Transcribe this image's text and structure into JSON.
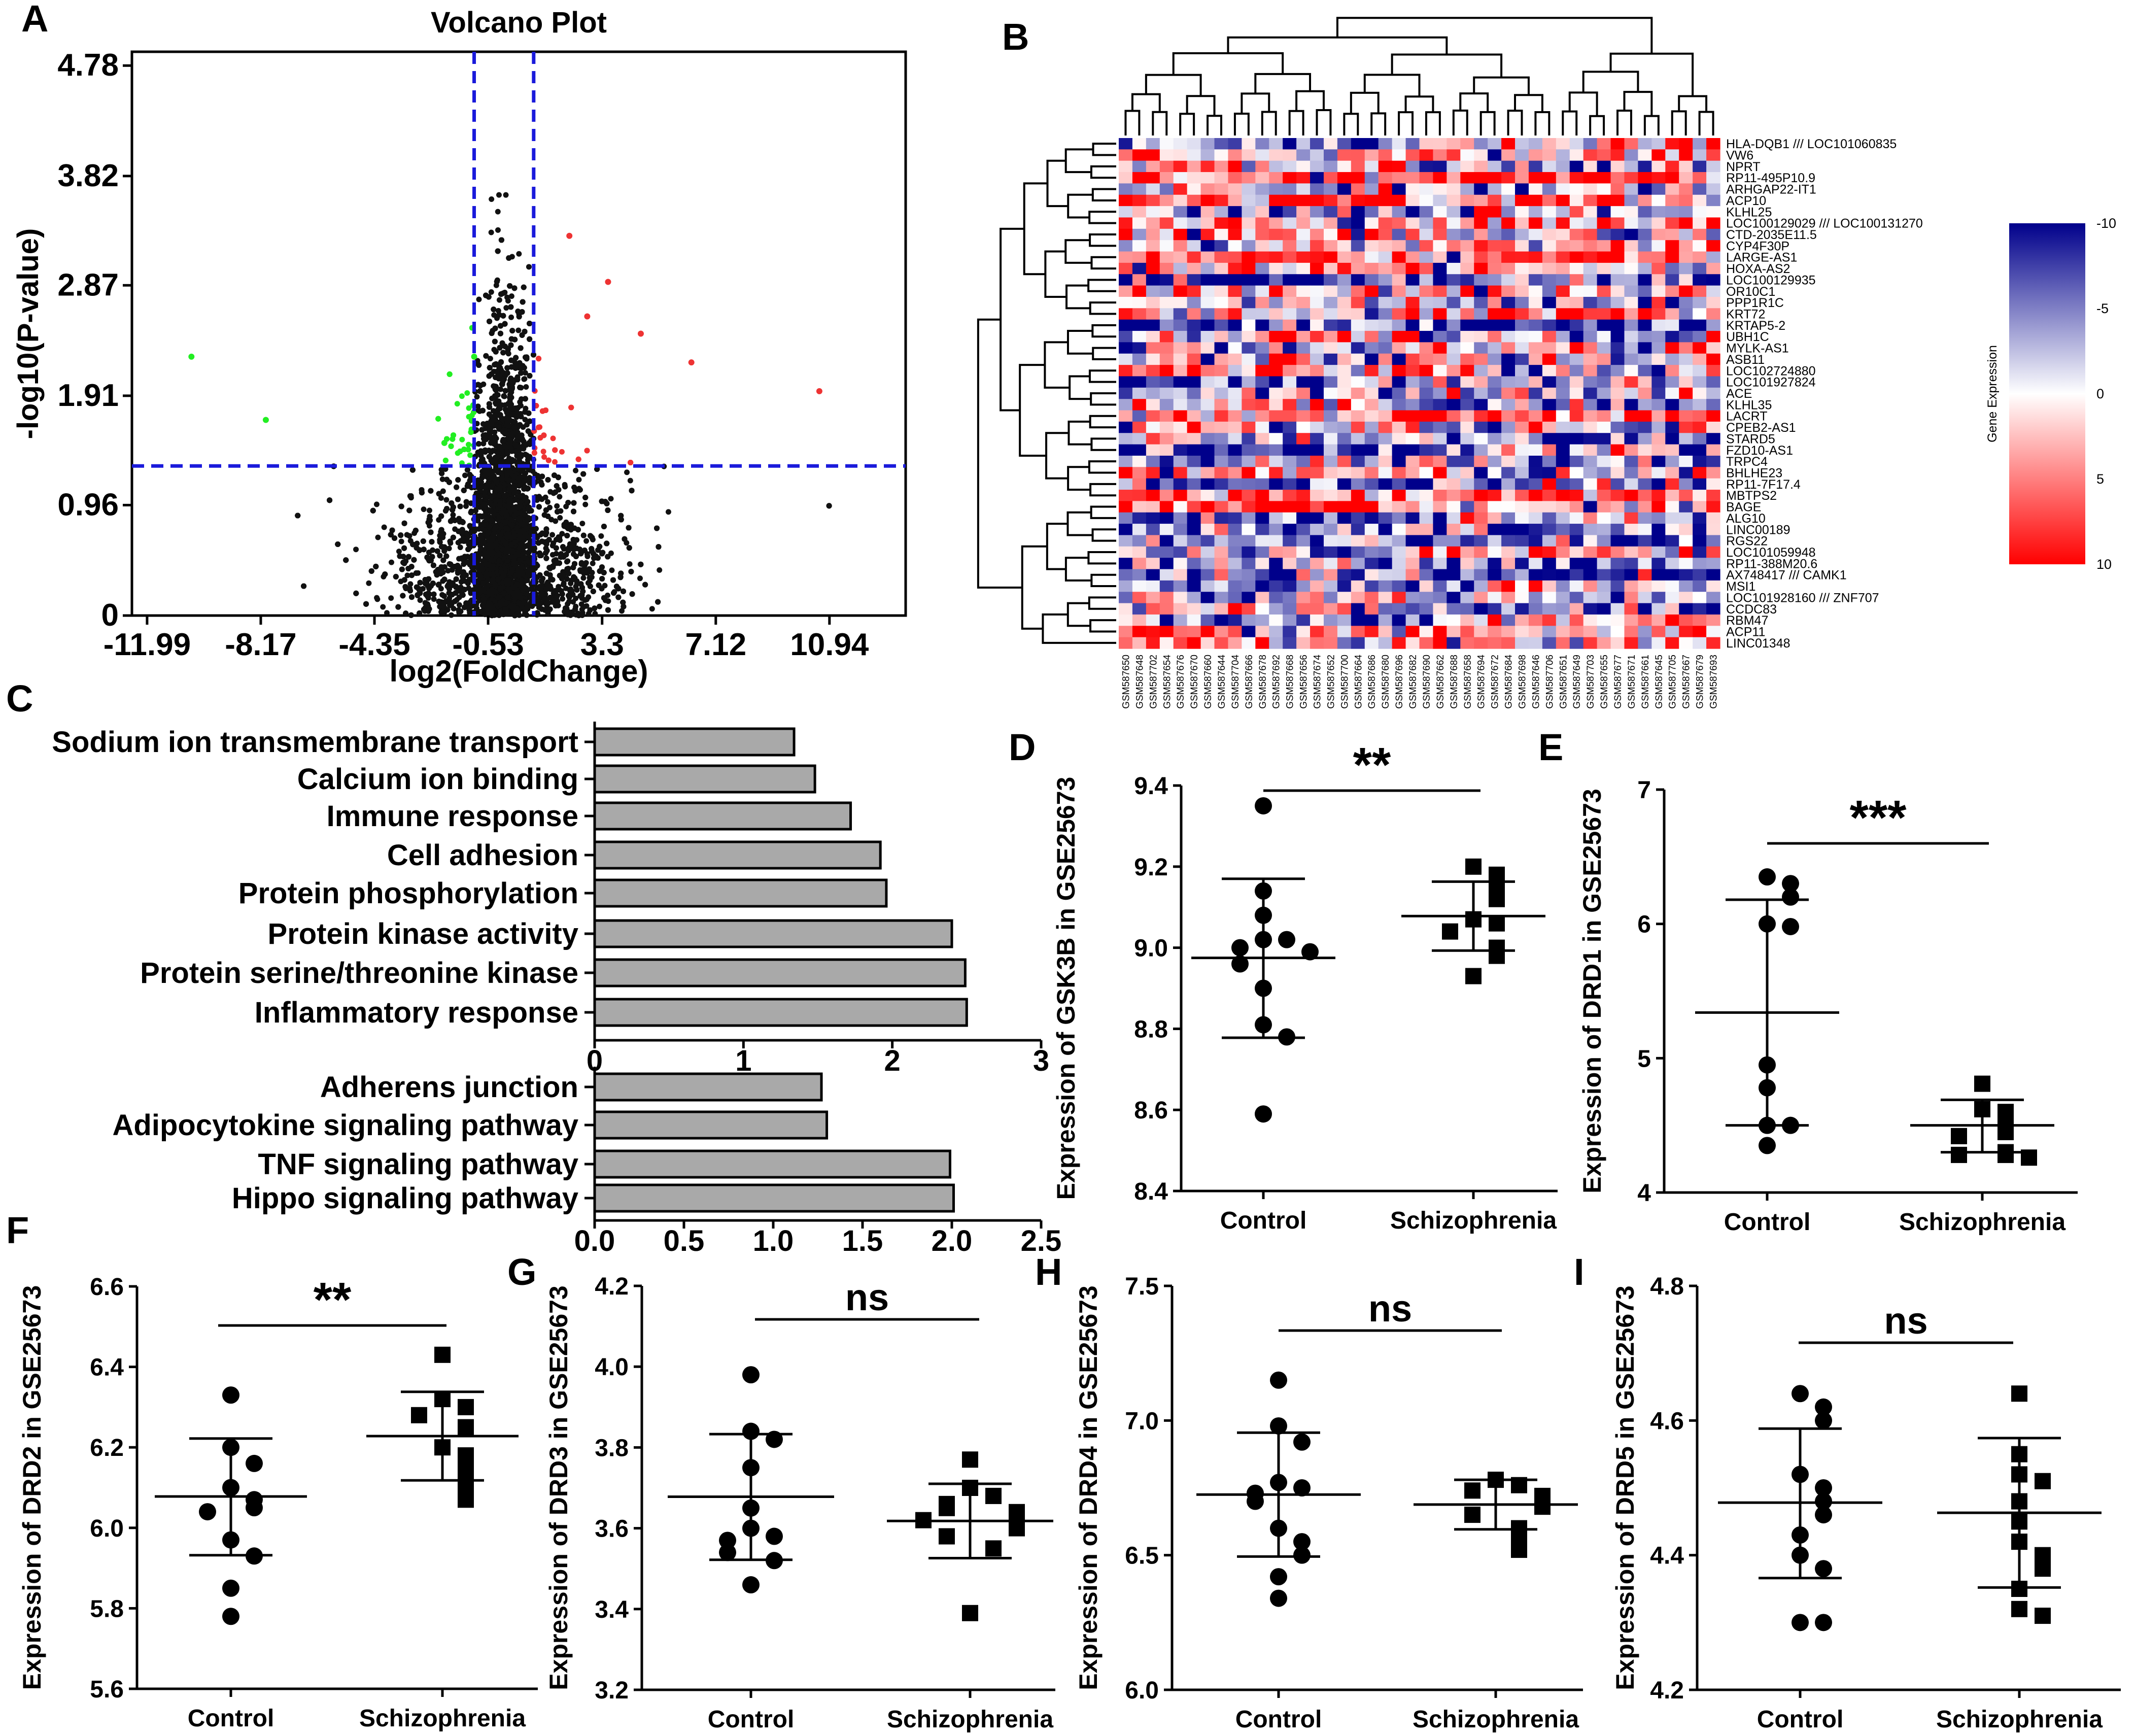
{
  "figure": {
    "panel_letters": [
      "A",
      "B",
      "C",
      "D",
      "E",
      "F",
      "G",
      "H",
      "I"
    ]
  },
  "chart_data": [
    {
      "panel": "A",
      "type": "scatter",
      "title": "Volcano Plot",
      "xlabel": "log2(FoldChange)",
      "ylabel": "-log10(P-value)",
      "xticks": [
        "-11.99",
        "-8.17",
        "-4.35",
        "-0.53",
        "3.3",
        "7.12",
        "10.94"
      ],
      "yticks": [
        "0",
        "0.96",
        "1.91",
        "2.87",
        "3.82",
        "4.78"
      ],
      "xlim": [
        -12.5,
        13.5
      ],
      "ylim": [
        0,
        4.9
      ],
      "thresholds": {
        "log2fc": [
          -1.0,
          1.0
        ],
        "neg_log10_p": 1.3
      },
      "colors": {
        "down": "#22ee22",
        "up": "#ee3333",
        "ns": "#111111",
        "threshold_line": "#1a1adb"
      },
      "note": "Dense cloud of ~20,000 genes; non-significant black, down-regulated green, up-regulated red."
    },
    {
      "panel": "B",
      "type": "heatmap",
      "genes": [
        "HLA-DQB1 /// LOC101060835",
        "VW6",
        "NPRT",
        "RP11-495P10.9",
        "ARHGAP22-IT1",
        "ACP10",
        "KLHL25",
        "LOC100129029 /// LOC100131270",
        "CTD-2035E11.5",
        "CYP4F30P",
        "LARGE-AS1",
        "HOXA-AS2",
        "LOC100129935",
        "OR10C1",
        "PPP1R1C",
        "KRT72",
        "KRTAP5-2",
        "UBH1C",
        "MYLK-AS1",
        "ASB11",
        "LOC102724880",
        "LOC101927824",
        "ACE",
        "KLHL35",
        "LACRT",
        "CPEB2-AS1",
        "STARD5",
        "FZD10-AS1",
        "TRPC4",
        "BHLHE23",
        "RP11-7F17.4",
        "MBTPS2",
        "BAGE",
        "ALG10",
        "LINC00189",
        "RGS22",
        "LOC101059948",
        "RP11-388M20.6",
        "AX748417 /// CAMK1",
        "MSI1",
        "LOC101928160 /// ZNF707",
        "CCDC83",
        "RBM47",
        "ACP11",
        "LINC01348"
      ],
      "samples_count": 44,
      "sample_labels": [
        "GSM587650",
        "GSM587648",
        "GSM587702",
        "GSM587654",
        "GSM587676",
        "GSM587670",
        "GSM587660",
        "GSM587644",
        "GSM587704",
        "GSM587666",
        "GSM587678",
        "GSM587692",
        "GSM587668",
        "GSM587656",
        "GSM587674",
        "GSM587652",
        "GSM587700",
        "GSM587664",
        "GSM587686",
        "GSM587680",
        "GSM587696",
        "GSM587682",
        "GSM587690",
        "GSM587662",
        "GSM587688",
        "GSM587658",
        "GSM587694",
        "GSM587672",
        "GSM587684",
        "GSM587698",
        "GSM587646",
        "GSM587706",
        "GSM587651",
        "GSM587649",
        "GSM587703",
        "GSM587655",
        "GSM587677",
        "GSM587671",
        "GSM587661",
        "GSM587645",
        "GSM587705",
        "GSM587667",
        "GSM587679",
        "GSM587693"
      ],
      "colorbar": {
        "label": "Gene Expression",
        "ticks": [
          "-10",
          "-5",
          "0",
          "5",
          "10"
        ],
        "low_color": "#ff0000",
        "mid_color": "#ffffff",
        "high_color": "#00008b"
      }
    },
    {
      "panel": "C",
      "type": "bar",
      "orientation": "horizontal",
      "groups": [
        {
          "categories": [
            "Sodium ion transmembrane transport",
            "Calcium ion binding",
            "Immune response",
            "Cell adhesion",
            "Protein phosphorylation",
            "Protein kinase activity",
            "Protein serine/threonine kinase",
            "Inflammatory response"
          ],
          "values": [
            1.34,
            1.48,
            1.72,
            1.92,
            1.96,
            2.4,
            2.49,
            2.5
          ],
          "xticks": [
            "0",
            "1",
            "2",
            "3"
          ],
          "xlim": [
            0,
            3
          ]
        },
        {
          "categories": [
            "Adherens junction",
            "Adipocytokine signaling pathway",
            "TNF signaling pathway",
            "Hippo signaling pathway"
          ],
          "values": [
            1.27,
            1.3,
            1.99,
            2.01
          ],
          "xticks": [
            "0.0",
            "0.5",
            "1.0",
            "1.5",
            "2.0",
            "2.5"
          ],
          "xlim": [
            0,
            2.5
          ]
        }
      ],
      "bar_color": "#a9a9a9"
    },
    {
      "panel": "D",
      "type": "scatter",
      "ylabel": "Expression of GSK3B in GSE25673",
      "yticks": [
        "8.4",
        "8.6",
        "8.8",
        "9.0",
        "9.2",
        "9.4"
      ],
      "ylim": [
        8.4,
        9.4
      ],
      "categories": [
        "Control",
        "Schizophrenia"
      ],
      "significance": "**",
      "groups": [
        {
          "name": "Control",
          "marker": "circle",
          "mean": 8.975,
          "sd_upper": 9.17,
          "sd_lower": 8.778,
          "points": [
            9.35,
            9.14,
            9.08,
            9.02,
            9.02,
            9.0,
            8.99,
            8.96,
            8.9,
            8.81,
            8.78,
            8.59
          ]
        },
        {
          "name": "Schizophrenia",
          "marker": "square",
          "mean": 9.078,
          "sd_upper": 9.163,
          "sd_lower": 8.993,
          "points": [
            9.2,
            9.18,
            9.15,
            9.12,
            9.07,
            9.06,
            9.04,
            9.0,
            8.98,
            8.93
          ]
        }
      ]
    },
    {
      "panel": "E",
      "type": "scatter",
      "ylabel": "Expression of DRD1 in GSE25673",
      "yticks": [
        "4",
        "5",
        "6",
        "7"
      ],
      "ylim": [
        4,
        7
      ],
      "categories": [
        "Control",
        "Schizophrenia"
      ],
      "significance": "***",
      "groups": [
        {
          "name": "Control",
          "marker": "circle",
          "mean": 5.34,
          "sd_upper": 6.18,
          "sd_lower": 4.5,
          "points": [
            6.35,
            6.3,
            6.2,
            6.0,
            5.98,
            4.95,
            4.78,
            4.5,
            4.5,
            4.35
          ]
        },
        {
          "name": "Schizophrenia",
          "marker": "square",
          "mean": 4.5,
          "sd_upper": 4.69,
          "sd_lower": 4.3,
          "points": [
            4.81,
            4.62,
            4.6,
            4.48,
            4.45,
            4.42,
            4.3,
            4.28,
            4.28,
            4.26
          ]
        }
      ]
    },
    {
      "panel": "F",
      "type": "scatter",
      "ylabel": "Expression of DRD2 in GSE25673",
      "yticks": [
        "5.6",
        "5.8",
        "6.0",
        "6.2",
        "6.4",
        "6.6"
      ],
      "ylim": [
        5.6,
        6.6
      ],
      "categories": [
        "Control",
        "Schizophrenia"
      ],
      "significance": "**",
      "groups": [
        {
          "name": "Control",
          "marker": "circle",
          "mean": 6.078,
          "sd_upper": 6.222,
          "sd_lower": 5.932,
          "points": [
            6.33,
            6.2,
            6.16,
            6.1,
            6.07,
            6.05,
            6.04,
            5.97,
            5.93,
            5.85,
            5.78
          ]
        },
        {
          "name": "Schizophrenia",
          "marker": "square",
          "mean": 6.228,
          "sd_upper": 6.338,
          "sd_lower": 6.118,
          "points": [
            6.43,
            6.32,
            6.3,
            6.28,
            6.25,
            6.2,
            6.18,
            6.15,
            6.12,
            6.1,
            6.07
          ]
        }
      ]
    },
    {
      "panel": "G",
      "type": "scatter",
      "ylabel": "Expression of DRD3 in GSE25673",
      "yticks": [
        "3.2",
        "3.4",
        "3.6",
        "3.8",
        "4.0",
        "4.2"
      ],
      "ylim": [
        3.2,
        4.2
      ],
      "categories": [
        "Control",
        "Schizophrenia"
      ],
      "significance": "ns",
      "groups": [
        {
          "name": "Control",
          "marker": "circle",
          "mean": 3.678,
          "sd_upper": 3.833,
          "sd_lower": 3.522,
          "points": [
            3.98,
            3.84,
            3.82,
            3.75,
            3.65,
            3.6,
            3.58,
            3.57,
            3.54,
            3.52,
            3.46
          ]
        },
        {
          "name": "Schizophrenia",
          "marker": "square",
          "mean": 3.618,
          "sd_upper": 3.71,
          "sd_lower": 3.526,
          "points": [
            3.77,
            3.7,
            3.68,
            3.66,
            3.65,
            3.64,
            3.63,
            3.62,
            3.6,
            3.58,
            3.55,
            3.39
          ]
        }
      ]
    },
    {
      "panel": "H",
      "type": "scatter",
      "ylabel": "Expression of DRD4 in GSE25673",
      "yticks": [
        "6.0",
        "6.5",
        "7.0",
        "7.5"
      ],
      "ylim": [
        6.0,
        7.5
      ],
      "categories": [
        "Control",
        "Schizophrenia"
      ],
      "significance": "ns",
      "groups": [
        {
          "name": "Control",
          "marker": "circle",
          "mean": 6.725,
          "sd_upper": 6.955,
          "sd_lower": 6.495,
          "points": [
            7.15,
            6.98,
            6.92,
            6.77,
            6.75,
            6.73,
            6.7,
            6.6,
            6.55,
            6.5,
            6.42,
            6.34
          ]
        },
        {
          "name": "Schizophrenia",
          "marker": "square",
          "mean": 6.688,
          "sd_upper": 6.78,
          "sd_lower": 6.596,
          "points": [
            6.78,
            6.76,
            6.74,
            6.72,
            6.7,
            6.68,
            6.65,
            6.6,
            6.57,
            6.52
          ]
        }
      ]
    },
    {
      "panel": "I",
      "type": "scatter",
      "ylabel": "Expression of DRD5 in GSE25673",
      "yticks": [
        "4.2",
        "4.4",
        "4.6",
        "4.8"
      ],
      "ylim": [
        4.2,
        4.8
      ],
      "categories": [
        "Control",
        "Schizophrenia"
      ],
      "significance": "ns",
      "groups": [
        {
          "name": "Control",
          "marker": "circle",
          "mean": 4.478,
          "sd_upper": 4.588,
          "sd_lower": 4.366,
          "points": [
            4.64,
            4.62,
            4.6,
            4.52,
            4.5,
            4.48,
            4.46,
            4.43,
            4.4,
            4.38,
            4.3,
            4.3
          ]
        },
        {
          "name": "Schizophrenia",
          "marker": "square",
          "mean": 4.463,
          "sd_upper": 4.574,
          "sd_lower": 4.352,
          "points": [
            4.64,
            4.55,
            4.52,
            4.51,
            4.48,
            4.45,
            4.42,
            4.4,
            4.38,
            4.35,
            4.32,
            4.31
          ]
        }
      ]
    }
  ]
}
